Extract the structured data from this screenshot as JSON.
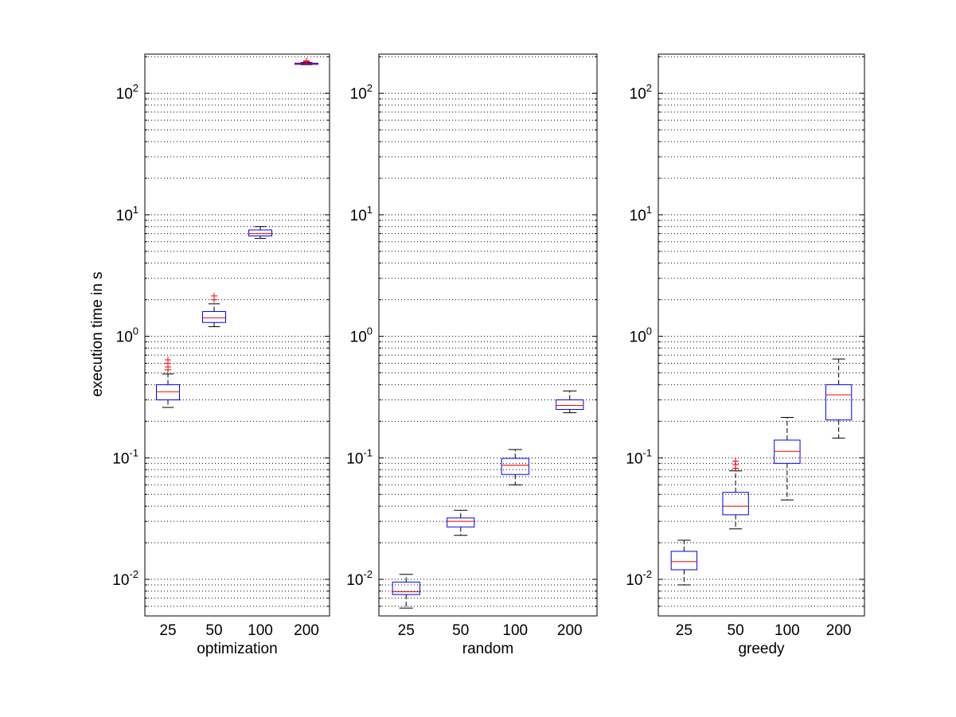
{
  "chart_data": {
    "type": "box",
    "ylabel": "execution time in s",
    "yscale": "log",
    "ylim": [
      0.005,
      210
    ],
    "ytick_labels": [
      {
        "base": "10",
        "exp": "-2",
        "value": 0.01
      },
      {
        "base": "10",
        "exp": "-1",
        "value": 0.1
      },
      {
        "base": "10",
        "exp": "0",
        "value": 1
      },
      {
        "base": "10",
        "exp": "1",
        "value": 10
      },
      {
        "base": "10",
        "exp": "2",
        "value": 100
      }
    ],
    "grid": "y-major-minor-dotted",
    "categories": [
      "25",
      "50",
      "100",
      "200"
    ],
    "colors": {
      "box": "#0000ff",
      "median": "#ff0000",
      "whisker": "#000000",
      "outlier": "#ff0000"
    },
    "panels": [
      {
        "xlabel": "optimization",
        "boxes": [
          {
            "category": "25",
            "whislo": 0.26,
            "q1": 0.3,
            "med": 0.35,
            "q3": 0.4,
            "whishi": 0.49,
            "fliers": [
              0.53,
              0.56,
              0.6,
              0.64
            ]
          },
          {
            "category": "50",
            "whislo": 1.2,
            "q1": 1.3,
            "med": 1.42,
            "q3": 1.6,
            "whishi": 1.85,
            "fliers": [
              2.0,
              2.15
            ]
          },
          {
            "category": "100",
            "whislo": 6.4,
            "q1": 6.7,
            "med": 7.0,
            "q3": 7.5,
            "whishi": 8.0,
            "fliers": []
          },
          {
            "category": "200",
            "whislo": 172,
            "q1": 173,
            "med": 175,
            "q3": 177,
            "whishi": 179,
            "fliers": [
              182,
              185
            ]
          }
        ]
      },
      {
        "xlabel": "random",
        "boxes": [
          {
            "category": "25",
            "whislo": 0.0058,
            "q1": 0.0075,
            "med": 0.0079,
            "q3": 0.0095,
            "whishi": 0.011,
            "fliers": []
          },
          {
            "category": "50",
            "whislo": 0.023,
            "q1": 0.027,
            "med": 0.03,
            "q3": 0.032,
            "whishi": 0.037,
            "fliers": []
          },
          {
            "category": "100",
            "whislo": 0.06,
            "q1": 0.073,
            "med": 0.087,
            "q3": 0.099,
            "whishi": 0.117,
            "fliers": []
          },
          {
            "category": "200",
            "whislo": 0.235,
            "q1": 0.25,
            "med": 0.27,
            "q3": 0.3,
            "whishi": 0.355,
            "fliers": []
          }
        ]
      },
      {
        "xlabel": "greedy",
        "boxes": [
          {
            "category": "25",
            "whislo": 0.009,
            "q1": 0.012,
            "med": 0.014,
            "q3": 0.017,
            "whishi": 0.021,
            "fliers": []
          },
          {
            "category": "50",
            "whislo": 0.026,
            "q1": 0.034,
            "med": 0.04,
            "q3": 0.052,
            "whishi": 0.078,
            "fliers": [
              0.082,
              0.088,
              0.094
            ]
          },
          {
            "category": "100",
            "whislo": 0.045,
            "q1": 0.09,
            "med": 0.113,
            "q3": 0.14,
            "whishi": 0.215,
            "fliers": []
          },
          {
            "category": "200",
            "whislo": 0.145,
            "q1": 0.205,
            "med": 0.33,
            "q3": 0.4,
            "whishi": 0.65,
            "fliers": []
          }
        ]
      }
    ]
  }
}
